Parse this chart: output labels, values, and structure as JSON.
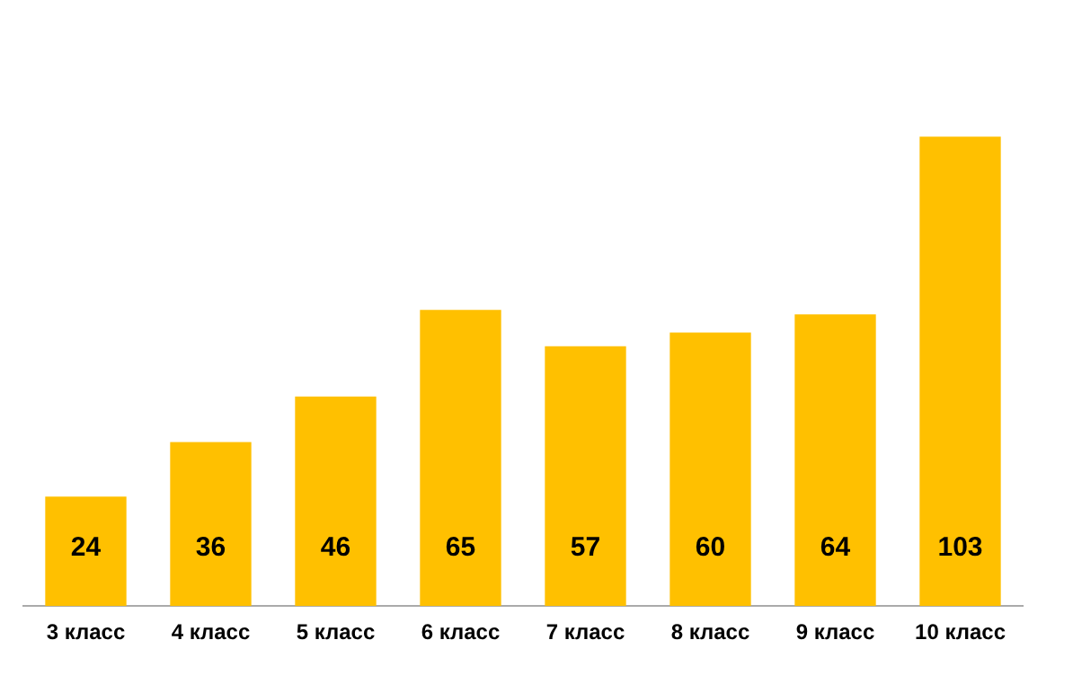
{
  "chart_data": {
    "type": "bar",
    "categories": [
      "3 класс",
      "4 класс",
      "5 класс",
      "6 класс",
      "7 класс",
      "8 класс",
      "9 класс",
      "10 класс"
    ],
    "values": [
      24,
      36,
      46,
      65,
      57,
      60,
      64,
      103
    ],
    "color": "#ffc000",
    "data_labels": true,
    "grid": false,
    "legend": false
  }
}
